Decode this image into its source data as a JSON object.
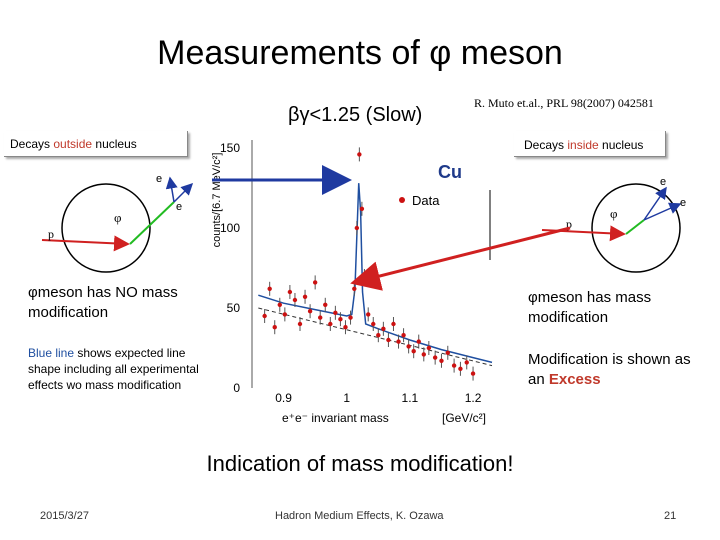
{
  "slide": {
    "title": "Measurements of φ meson",
    "subtitle": "βγ<1.25 (Slow)",
    "reference": "R. Muto et.al., PRL 98(2007) 042581",
    "box_left": {
      "pre": "Decays ",
      "hl": "outside",
      "post": " nucleus"
    },
    "box_right": {
      "pre": "Decays ",
      "hl": "inside",
      "post": " nucleus"
    },
    "cu_label": "Cu",
    "left_text": "φmeson has NO mass modification",
    "blue_note": {
      "hl": "Blue line",
      "rest": " shows expected line shape including all experimental effects wo  mass modification"
    },
    "right_text": "φmeson has mass modification",
    "mod_text": {
      "pre": "Modification is shown as an ",
      "hl": "Excess"
    },
    "conclusion": "Indication of  mass modification!",
    "footer": {
      "date": "2015/3/27",
      "center": "Hadron Medium Effects, K. Ozawa",
      "page": "21"
    },
    "diagram_left": {
      "phi": "φ",
      "p": "p",
      "e1": "e",
      "e2": "e"
    },
    "diagram_right": {
      "phi": "φ",
      "p": "p",
      "e1": "e",
      "e2": "e"
    },
    "colors": {
      "excess": "#c0392b",
      "blue_line": "#1f4fa0",
      "data": "#cc1111",
      "arrow_blue": "#1f3aa0",
      "arrow_red": "#d02020"
    }
  },
  "chart_data": {
    "type": "scatter",
    "ylabel": "counts/[6.7 MeV/c²]",
    "xlabel": "e⁺e⁻ invariant mass",
    "xunit": "[GeV/c²]",
    "legend": "Data",
    "xlim": [
      0.85,
      1.23
    ],
    "ylim": [
      0,
      155
    ],
    "xticks": [
      "0.9",
      "1",
      "1.1",
      "1.2"
    ],
    "yticks": [
      "0",
      "50",
      "100",
      "150"
    ],
    "series": [
      {
        "name": "Data",
        "points": [
          [
            0.87,
            45
          ],
          [
            0.878,
            62
          ],
          [
            0.886,
            38
          ],
          [
            0.894,
            52
          ],
          [
            0.902,
            46
          ],
          [
            0.91,
            60
          ],
          [
            0.918,
            55
          ],
          [
            0.926,
            40
          ],
          [
            0.934,
            57
          ],
          [
            0.942,
            48
          ],
          [
            0.95,
            66
          ],
          [
            0.958,
            44
          ],
          [
            0.966,
            52
          ],
          [
            0.974,
            40
          ],
          [
            0.982,
            47
          ],
          [
            0.99,
            43
          ],
          [
            0.998,
            38
          ],
          [
            1.006,
            44
          ],
          [
            1.012,
            62
          ],
          [
            1.016,
            100
          ],
          [
            1.02,
            146
          ],
          [
            1.024,
            112
          ],
          [
            1.028,
            70
          ],
          [
            1.034,
            46
          ],
          [
            1.042,
            40
          ],
          [
            1.05,
            33
          ],
          [
            1.058,
            37
          ],
          [
            1.066,
            30
          ],
          [
            1.074,
            40
          ],
          [
            1.082,
            29
          ],
          [
            1.09,
            33
          ],
          [
            1.098,
            26
          ],
          [
            1.106,
            23
          ],
          [
            1.114,
            29
          ],
          [
            1.122,
            21
          ],
          [
            1.13,
            25
          ],
          [
            1.14,
            19
          ],
          [
            1.15,
            17
          ],
          [
            1.16,
            22
          ],
          [
            1.17,
            14
          ],
          [
            1.18,
            12
          ],
          [
            1.19,
            16
          ],
          [
            1.2,
            9
          ]
        ]
      },
      {
        "name": "expected",
        "points": [
          [
            0.86,
            58
          ],
          [
            0.9,
            53
          ],
          [
            0.95,
            49
          ],
          [
            1.0,
            45
          ],
          [
            1.008,
            46
          ],
          [
            1.013,
            62
          ],
          [
            1.016,
            95
          ],
          [
            1.019,
            128
          ],
          [
            1.022,
            110
          ],
          [
            1.025,
            60
          ],
          [
            1.03,
            40
          ],
          [
            1.05,
            37
          ],
          [
            1.1,
            30
          ],
          [
            1.15,
            24
          ],
          [
            1.2,
            19
          ],
          [
            1.23,
            16
          ]
        ]
      }
    ]
  }
}
